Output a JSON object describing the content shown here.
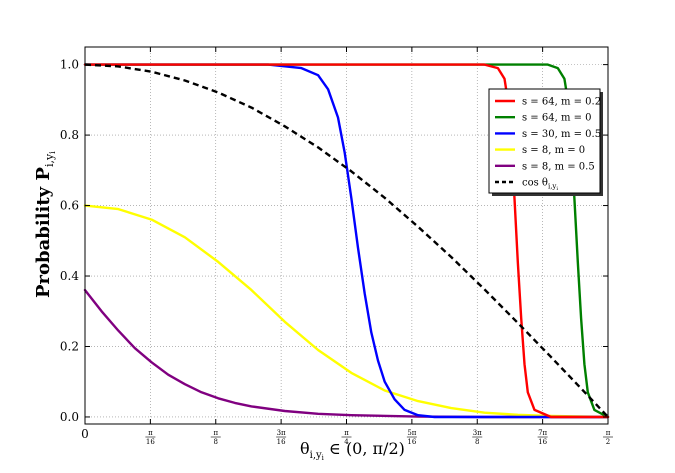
{
  "chart_data": {
    "type": "line",
    "xlabel_main": "θ",
    "xlabel_sub": "i,y",
    "xlabel_subsub": "i",
    "xlabel_rest": " ∈ (0, π/2)",
    "ylabel_main": "Probability P",
    "ylabel_sub": "i,y",
    "ylabel_subsub": "i",
    "xlim": [
      0,
      1.5708
    ],
    "ylim": [
      -0.02,
      1.05
    ],
    "grid": true,
    "grid_style": "dotted",
    "legend_position": "upper-right",
    "x_ticks": [
      {
        "value": 0,
        "num": "0",
        "den": ""
      },
      {
        "value": 0.19635,
        "num": "π",
        "den": "16"
      },
      {
        "value": 0.3927,
        "num": "π",
        "den": "8"
      },
      {
        "value": 0.58905,
        "num": "3π",
        "den": "16"
      },
      {
        "value": 0.7854,
        "num": "π",
        "den": "4"
      },
      {
        "value": 0.98175,
        "num": "5π",
        "den": "16"
      },
      {
        "value": 1.1781,
        "num": "3π",
        "den": "8"
      },
      {
        "value": 1.37445,
        "num": "7π",
        "den": "16"
      },
      {
        "value": 1.5708,
        "num": "π",
        "den": "2"
      }
    ],
    "y_ticks": [
      "0.0",
      "0.2",
      "0.4",
      "0.6",
      "0.8",
      "1.0"
    ],
    "y_tick_values": [
      0,
      0.2,
      0.4,
      0.6,
      0.8,
      1.0
    ],
    "series": [
      {
        "name": "s = 64, m = 0.2",
        "color": "#ff0000",
        "dash": "",
        "x": [
          0,
          1.1,
          1.2,
          1.24,
          1.26,
          1.27,
          1.28,
          1.29,
          1.3,
          1.31,
          1.32,
          1.33,
          1.35,
          1.4,
          1.5708
        ],
        "y": [
          1.0,
          1.0,
          1.0,
          0.99,
          0.96,
          0.9,
          0.78,
          0.62,
          0.44,
          0.28,
          0.15,
          0.07,
          0.02,
          0.0,
          0.0
        ]
      },
      {
        "name": "s = 64, m = 0",
        "color": "#008000",
        "dash": "",
        "x": [
          0,
          1.3,
          1.39,
          1.42,
          1.44,
          1.45,
          1.46,
          1.47,
          1.48,
          1.49,
          1.5,
          1.51,
          1.53,
          1.57,
          1.5708
        ],
        "y": [
          1.0,
          1.0,
          1.0,
          0.99,
          0.96,
          0.9,
          0.78,
          0.62,
          0.44,
          0.28,
          0.15,
          0.07,
          0.02,
          0.0,
          0.0
        ]
      },
      {
        "name": "s = 30, m = 0.5",
        "color": "#0000ff",
        "dash": "",
        "x": [
          0,
          0.55,
          0.65,
          0.7,
          0.73,
          0.76,
          0.78,
          0.8,
          0.82,
          0.84,
          0.86,
          0.88,
          0.9,
          0.93,
          0.96,
          1.0,
          1.05,
          1.5708
        ],
        "y": [
          1.0,
          1.0,
          0.99,
          0.97,
          0.93,
          0.85,
          0.75,
          0.62,
          0.48,
          0.35,
          0.24,
          0.16,
          0.1,
          0.05,
          0.02,
          0.005,
          0.0,
          0.0
        ]
      },
      {
        "name": "s = 8, m = 0",
        "color": "#ffff00",
        "dash": "",
        "x": [
          0,
          0.1,
          0.2,
          0.3,
          0.4,
          0.5,
          0.6,
          0.7,
          0.8,
          0.9,
          1.0,
          1.1,
          1.2,
          1.3,
          1.4,
          1.5708
        ],
        "y": [
          0.6,
          0.59,
          0.56,
          0.51,
          0.44,
          0.36,
          0.27,
          0.19,
          0.125,
          0.075,
          0.045,
          0.025,
          0.012,
          0.006,
          0.003,
          0.0
        ]
      },
      {
        "name": "s = 8, m = 0.5",
        "color": "#800080",
        "dash": "",
        "x": [
          0,
          0.05,
          0.1,
          0.15,
          0.2,
          0.25,
          0.3,
          0.35,
          0.4,
          0.45,
          0.5,
          0.6,
          0.7,
          0.8,
          1.0,
          1.2,
          1.5708
        ],
        "y": [
          0.36,
          0.3,
          0.245,
          0.195,
          0.155,
          0.12,
          0.093,
          0.07,
          0.053,
          0.04,
          0.03,
          0.017,
          0.009,
          0.005,
          0.001,
          0.0,
          0.0
        ]
      },
      {
        "name": "cos θ",
        "name_sub": "i,y",
        "name_subsub": "i",
        "color": "#000000",
        "dash": "6,4",
        "x": [
          0,
          0.1,
          0.2,
          0.3,
          0.4,
          0.5,
          0.6,
          0.7,
          0.8,
          0.9,
          1.0,
          1.1,
          1.2,
          1.3,
          1.4,
          1.5,
          1.5708
        ],
        "y": [
          1.0,
          0.995,
          0.98,
          0.955,
          0.921,
          0.878,
          0.825,
          0.765,
          0.697,
          0.622,
          0.54,
          0.454,
          0.362,
          0.267,
          0.17,
          0.071,
          0.0
        ]
      }
    ]
  }
}
